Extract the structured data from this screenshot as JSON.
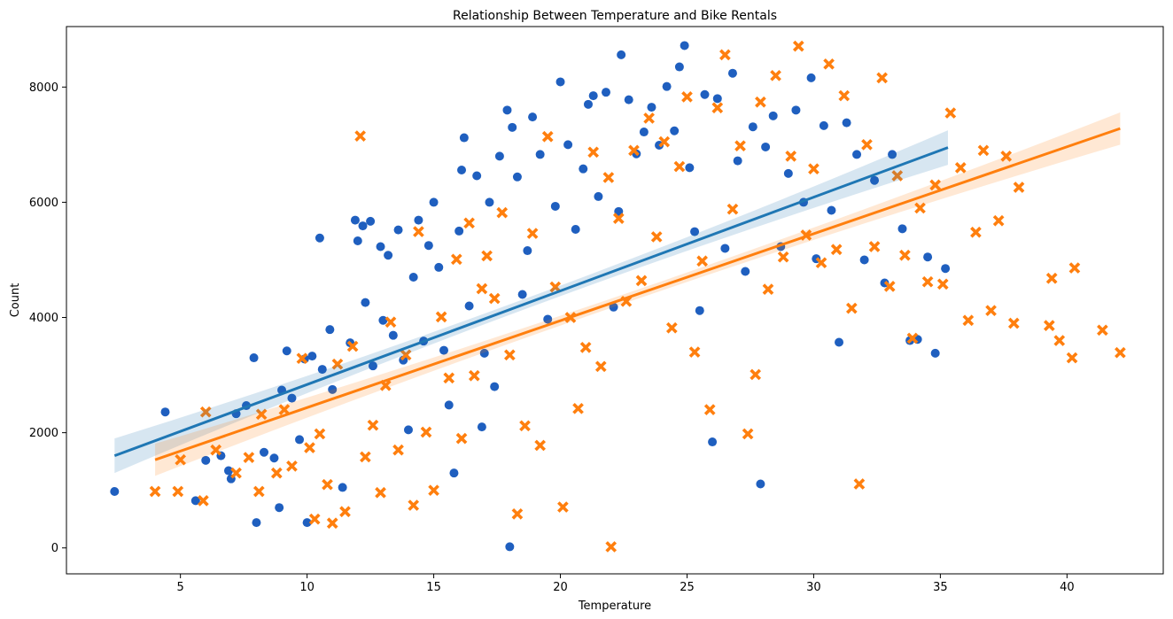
{
  "chart_data": {
    "type": "scatter",
    "title": "Relationship Between Temperature and Bike Rentals",
    "xlabel": "Temperature",
    "ylabel": "Count",
    "xlim": [
      0.5,
      43.8
    ],
    "ylim": [
      -450,
      9050
    ],
    "x_ticks": [
      5,
      10,
      15,
      20,
      25,
      30,
      35,
      40
    ],
    "x_tick_labels": [
      "5",
      "10",
      "15",
      "20",
      "25",
      "30",
      "35",
      "40"
    ],
    "y_ticks": [
      0,
      2000,
      4000,
      6000,
      8000
    ],
    "y_tick_labels": [
      "0",
      "2000",
      "4000",
      "6000",
      "8000"
    ],
    "grid": false,
    "legend": null,
    "series": [
      {
        "marker": "circle",
        "color": "#1f5fbf",
        "fit_line": {
          "x": [
            2.4,
            35.3
          ],
          "y": [
            1600,
            6950
          ],
          "band_halfwidth_ends": 300,
          "band_halfwidth_mid": 90
        },
        "points": [
          [
            2.4,
            980
          ],
          [
            4.4,
            2360
          ],
          [
            5.6,
            820
          ],
          [
            6.0,
            1520
          ],
          [
            6.6,
            1600
          ],
          [
            6.9,
            1340
          ],
          [
            7.0,
            1200
          ],
          [
            7.2,
            2330
          ],
          [
            7.6,
            2470
          ],
          [
            7.9,
            3300
          ],
          [
            8.0,
            440
          ],
          [
            8.3,
            1660
          ],
          [
            8.7,
            1560
          ],
          [
            8.9,
            700
          ],
          [
            9.0,
            2740
          ],
          [
            9.2,
            3420
          ],
          [
            9.4,
            2600
          ],
          [
            9.7,
            1880
          ],
          [
            9.9,
            3280
          ],
          [
            10.0,
            440
          ],
          [
            10.2,
            3330
          ],
          [
            10.5,
            5380
          ],
          [
            10.6,
            3100
          ],
          [
            10.9,
            3790
          ],
          [
            11.0,
            2750
          ],
          [
            11.4,
            1050
          ],
          [
            11.7,
            3560
          ],
          [
            11.9,
            5690
          ],
          [
            12.0,
            5330
          ],
          [
            12.2,
            5590
          ],
          [
            12.3,
            4260
          ],
          [
            12.5,
            5670
          ],
          [
            12.6,
            3160
          ],
          [
            12.9,
            5230
          ],
          [
            13.0,
            3950
          ],
          [
            13.2,
            5080
          ],
          [
            13.4,
            3690
          ],
          [
            13.6,
            5520
          ],
          [
            13.8,
            3260
          ],
          [
            14.0,
            2050
          ],
          [
            14.2,
            4700
          ],
          [
            14.4,
            5690
          ],
          [
            14.6,
            3590
          ],
          [
            14.8,
            5250
          ],
          [
            15.0,
            6000
          ],
          [
            15.2,
            4870
          ],
          [
            15.4,
            3430
          ],
          [
            15.6,
            2480
          ],
          [
            15.8,
            1300
          ],
          [
            16.0,
            5500
          ],
          [
            16.1,
            6560
          ],
          [
            16.2,
            7120
          ],
          [
            16.4,
            4200
          ],
          [
            16.7,
            6460
          ],
          [
            16.9,
            2100
          ],
          [
            17.0,
            3380
          ],
          [
            17.2,
            6000
          ],
          [
            17.4,
            2800
          ],
          [
            17.6,
            6800
          ],
          [
            17.9,
            7600
          ],
          [
            18.0,
            20
          ],
          [
            18.1,
            7300
          ],
          [
            18.3,
            6440
          ],
          [
            18.5,
            4400
          ],
          [
            18.7,
            5160
          ],
          [
            18.9,
            7480
          ],
          [
            19.2,
            6830
          ],
          [
            19.5,
            3970
          ],
          [
            19.8,
            5930
          ],
          [
            20.0,
            8090
          ],
          [
            20.3,
            7000
          ],
          [
            20.6,
            5530
          ],
          [
            20.9,
            6580
          ],
          [
            21.1,
            7700
          ],
          [
            21.3,
            7850
          ],
          [
            21.5,
            6100
          ],
          [
            21.8,
            7910
          ],
          [
            22.1,
            4180
          ],
          [
            22.3,
            5840
          ],
          [
            22.4,
            8560
          ],
          [
            22.7,
            7780
          ],
          [
            23.0,
            6840
          ],
          [
            23.3,
            7220
          ],
          [
            23.6,
            7650
          ],
          [
            23.9,
            6990
          ],
          [
            24.2,
            8010
          ],
          [
            24.5,
            7240
          ],
          [
            24.7,
            8350
          ],
          [
            24.9,
            8720
          ],
          [
            25.1,
            6600
          ],
          [
            25.3,
            5490
          ],
          [
            25.5,
            4120
          ],
          [
            25.7,
            7870
          ],
          [
            26.0,
            1840
          ],
          [
            26.2,
            7800
          ],
          [
            26.5,
            5200
          ],
          [
            26.8,
            8240
          ],
          [
            27.0,
            6720
          ],
          [
            27.3,
            4800
          ],
          [
            27.6,
            7310
          ],
          [
            27.9,
            1110
          ],
          [
            28.1,
            6960
          ],
          [
            28.4,
            7500
          ],
          [
            28.7,
            5230
          ],
          [
            29.0,
            6500
          ],
          [
            29.3,
            7600
          ],
          [
            29.6,
            6000
          ],
          [
            29.9,
            8160
          ],
          [
            30.1,
            5020
          ],
          [
            30.4,
            7330
          ],
          [
            30.7,
            5860
          ],
          [
            31.0,
            3570
          ],
          [
            31.3,
            7380
          ],
          [
            31.7,
            6830
          ],
          [
            32.0,
            5000
          ],
          [
            32.4,
            6380
          ],
          [
            32.8,
            4600
          ],
          [
            33.1,
            6830
          ],
          [
            33.5,
            5540
          ],
          [
            33.8,
            3600
          ],
          [
            34.1,
            3620
          ],
          [
            34.5,
            5050
          ],
          [
            34.8,
            3380
          ],
          [
            35.2,
            4850
          ]
        ]
      },
      {
        "marker": "x",
        "color": "#ff7f0e",
        "fit_line": {
          "x": [
            4.0,
            42.1
          ],
          "y": [
            1530,
            7280
          ],
          "band_halfwidth_ends": 280,
          "band_halfwidth_mid": 80
        },
        "points": [
          [
            4.0,
            980
          ],
          [
            4.9,
            980
          ],
          [
            5.0,
            1530
          ],
          [
            5.9,
            820
          ],
          [
            6.0,
            2360
          ],
          [
            6.4,
            1700
          ],
          [
            7.2,
            1300
          ],
          [
            7.7,
            1570
          ],
          [
            8.1,
            980
          ],
          [
            8.2,
            2320
          ],
          [
            8.8,
            1300
          ],
          [
            9.1,
            2400
          ],
          [
            9.4,
            1420
          ],
          [
            9.8,
            3290
          ],
          [
            10.1,
            1740
          ],
          [
            10.3,
            500
          ],
          [
            10.5,
            1980
          ],
          [
            10.8,
            1100
          ],
          [
            11.0,
            430
          ],
          [
            11.2,
            3190
          ],
          [
            11.5,
            630
          ],
          [
            11.8,
            3500
          ],
          [
            12.1,
            7150
          ],
          [
            12.3,
            1580
          ],
          [
            12.6,
            2130
          ],
          [
            12.9,
            960
          ],
          [
            13.1,
            2820
          ],
          [
            13.3,
            3920
          ],
          [
            13.6,
            1700
          ],
          [
            13.9,
            3350
          ],
          [
            14.2,
            740
          ],
          [
            14.4,
            5490
          ],
          [
            14.7,
            2010
          ],
          [
            15.0,
            1000
          ],
          [
            15.3,
            4010
          ],
          [
            15.6,
            2950
          ],
          [
            15.9,
            5010
          ],
          [
            16.1,
            1900
          ],
          [
            16.4,
            5640
          ],
          [
            16.6,
            2990
          ],
          [
            16.9,
            4500
          ],
          [
            17.1,
            5070
          ],
          [
            17.4,
            4330
          ],
          [
            17.7,
            5820
          ],
          [
            18.0,
            3350
          ],
          [
            18.3,
            590
          ],
          [
            18.6,
            2120
          ],
          [
            18.9,
            5460
          ],
          [
            19.2,
            1780
          ],
          [
            19.5,
            7140
          ],
          [
            19.8,
            4530
          ],
          [
            20.1,
            710
          ],
          [
            20.4,
            4000
          ],
          [
            20.7,
            2420
          ],
          [
            21.0,
            3480
          ],
          [
            21.3,
            6870
          ],
          [
            21.6,
            3150
          ],
          [
            21.9,
            6430
          ],
          [
            22.0,
            20
          ],
          [
            22.3,
            5720
          ],
          [
            22.6,
            4280
          ],
          [
            22.9,
            6900
          ],
          [
            23.2,
            4640
          ],
          [
            23.5,
            7460
          ],
          [
            23.8,
            5400
          ],
          [
            24.1,
            7050
          ],
          [
            24.4,
            3820
          ],
          [
            24.7,
            6620
          ],
          [
            25.0,
            7830
          ],
          [
            25.3,
            3400
          ],
          [
            25.6,
            4980
          ],
          [
            25.9,
            2400
          ],
          [
            26.2,
            7640
          ],
          [
            26.5,
            8560
          ],
          [
            26.8,
            5880
          ],
          [
            27.1,
            6980
          ],
          [
            27.4,
            1980
          ],
          [
            27.7,
            3010
          ],
          [
            27.9,
            7740
          ],
          [
            28.2,
            4490
          ],
          [
            28.5,
            8200
          ],
          [
            28.8,
            5050
          ],
          [
            29.1,
            6800
          ],
          [
            29.4,
            8710
          ],
          [
            29.7,
            5430
          ],
          [
            30.0,
            6580
          ],
          [
            30.3,
            4950
          ],
          [
            30.6,
            8400
          ],
          [
            30.9,
            5180
          ],
          [
            31.2,
            7850
          ],
          [
            31.5,
            4160
          ],
          [
            31.8,
            1110
          ],
          [
            32.1,
            7000
          ],
          [
            32.4,
            5230
          ],
          [
            32.7,
            8160
          ],
          [
            33.0,
            4540
          ],
          [
            33.3,
            6460
          ],
          [
            33.6,
            5080
          ],
          [
            33.9,
            3640
          ],
          [
            34.2,
            5900
          ],
          [
            34.5,
            4620
          ],
          [
            34.8,
            6300
          ],
          [
            35.1,
            4580
          ],
          [
            35.4,
            7550
          ],
          [
            35.8,
            6600
          ],
          [
            36.1,
            3950
          ],
          [
            36.4,
            5480
          ],
          [
            36.7,
            6900
          ],
          [
            37.0,
            4120
          ],
          [
            37.3,
            5680
          ],
          [
            37.6,
            6800
          ],
          [
            37.9,
            3900
          ],
          [
            38.1,
            6260
          ],
          [
            39.3,
            3860
          ],
          [
            39.4,
            4680
          ],
          [
            39.7,
            3600
          ],
          [
            40.2,
            3300
          ],
          [
            40.3,
            4860
          ],
          [
            41.4,
            3780
          ],
          [
            42.1,
            3390
          ]
        ]
      }
    ]
  }
}
